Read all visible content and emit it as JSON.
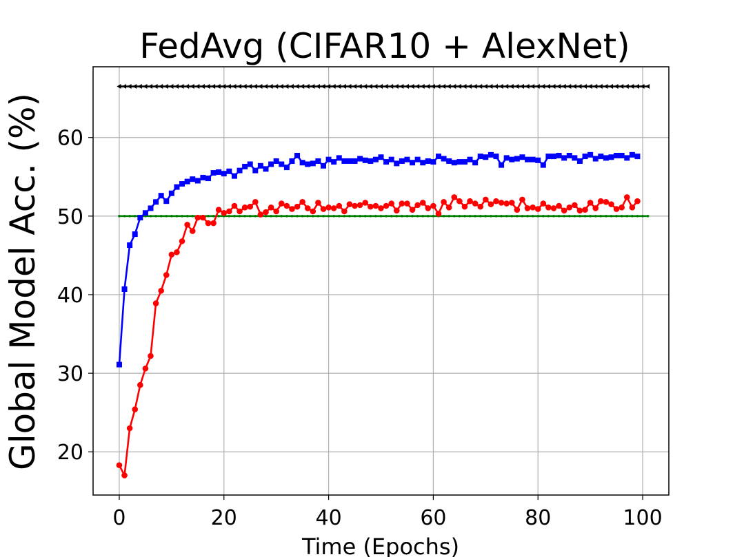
{
  "chart_data": {
    "type": "line",
    "title": "FedAvg (CIFAR10 + AlexNet)",
    "xlabel": "Time (Epochs)",
    "ylabel": "Global Model Acc. (%)",
    "xlim": [
      -5,
      105
    ],
    "ylim": [
      14.5,
      69
    ],
    "xticks": [
      0,
      20,
      40,
      60,
      80,
      100
    ],
    "yticks": [
      20,
      30,
      40,
      50,
      60
    ],
    "grid": true,
    "series": [
      {
        "color": "#000000",
        "marker": "triangle-left",
        "x_start": 0,
        "x_end": 101,
        "x_step": 1,
        "constant": 66.5
      },
      {
        "color": "#008000",
        "marker": "point",
        "x_start": 0,
        "x_end": 101,
        "x_step": 1,
        "constant": 50.0
      },
      {
        "color": "#0000ff",
        "marker": "square",
        "x_start": 0,
        "x_step": 1,
        "values": [
          31.1,
          40.7,
          46.3,
          47.7,
          49.8,
          50.4,
          51.0,
          51.8,
          52.6,
          51.9,
          52.9,
          53.7,
          54.1,
          54.4,
          54.7,
          54.5,
          54.9,
          54.8,
          55.5,
          55.6,
          55.4,
          55.7,
          55.1,
          55.8,
          56.3,
          56.6,
          55.8,
          56.4,
          56.0,
          56.6,
          57.0,
          56.6,
          56.2,
          57.0,
          57.7,
          56.8,
          56.6,
          56.7,
          57.0,
          56.4,
          57.2,
          56.9,
          57.4,
          57.0,
          57.0,
          57.0,
          57.3,
          57.1,
          57.0,
          57.2,
          57.5,
          56.9,
          57.2,
          56.7,
          57.0,
          57.2,
          56.8,
          57.2,
          56.8,
          57.0,
          56.9,
          57.6,
          57.3,
          57.0,
          56.8,
          56.9,
          56.9,
          57.2,
          56.8,
          57.6,
          57.5,
          57.8,
          57.6,
          56.5,
          57.4,
          57.2,
          57.3,
          57.5,
          57.2,
          57.2,
          57.1,
          56.5,
          57.6,
          57.6,
          57.7,
          57.4,
          57.7,
          57.4,
          57.0,
          57.6,
          57.8,
          57.3,
          57.6,
          57.4,
          57.5,
          57.7,
          57.7,
          57.4,
          57.8,
          57.6
        ]
      },
      {
        "color": "#ff0000",
        "marker": "circle",
        "x_start": 0,
        "x_step": 1,
        "values": [
          18.3,
          17.0,
          23.0,
          25.4,
          28.5,
          30.6,
          32.2,
          38.9,
          40.5,
          42.5,
          45.1,
          45.4,
          46.8,
          48.9,
          48.1,
          49.8,
          49.8,
          49.1,
          49.1,
          50.8,
          50.4,
          50.6,
          51.3,
          50.6,
          51.1,
          51.2,
          51.8,
          50.2,
          50.5,
          51.1,
          50.6,
          51.6,
          51.3,
          50.9,
          51.2,
          51.8,
          51.0,
          50.6,
          51.7,
          50.9,
          51.1,
          51.0,
          51.3,
          50.6,
          51.5,
          51.3,
          51.4,
          51.7,
          51.2,
          51.3,
          51.0,
          51.3,
          51.6,
          50.7,
          51.6,
          51.6,
          50.8,
          51.4,
          51.7,
          51.0,
          51.3,
          50.3,
          51.8,
          51.1,
          52.4,
          51.9,
          51.2,
          51.9,
          51.6,
          51.2,
          52.1,
          51.5,
          51.9,
          51.7,
          51.6,
          51.7,
          50.8,
          52.1,
          51.0,
          51.1,
          50.9,
          51.6,
          51.1,
          51.0,
          51.3,
          50.7,
          51.1,
          51.4,
          50.7,
          50.8,
          51.7,
          51.0,
          51.9,
          51.8,
          51.5,
          50.9,
          51.1,
          52.4,
          51.1,
          51.9
        ]
      }
    ]
  }
}
